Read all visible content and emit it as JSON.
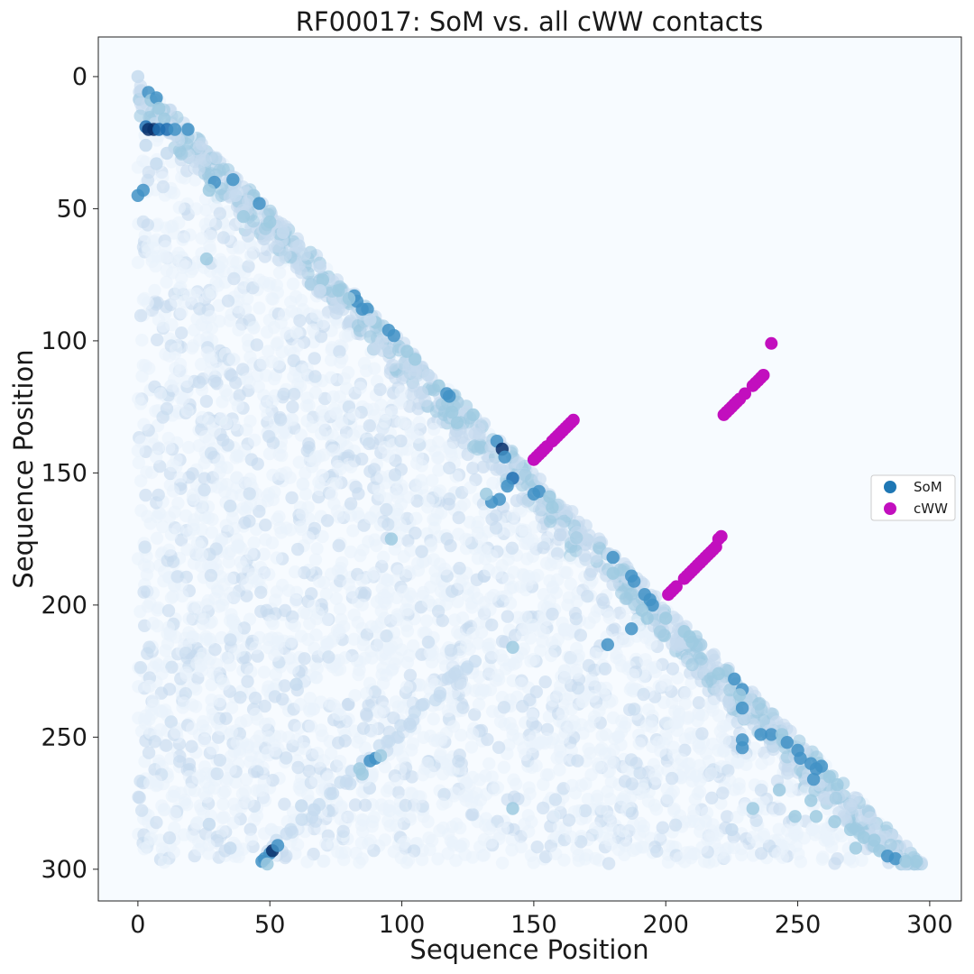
{
  "chart_data": {
    "type": "scatter",
    "title": "RF00017: SoM vs. all cWW contacts",
    "xlabel": "Sequence Position",
    "ylabel": "Sequence Position",
    "xlim": [
      -15,
      312
    ],
    "ylim": [
      312,
      -15
    ],
    "y_inverted": true,
    "x_ticks": [
      0,
      50,
      100,
      150,
      200,
      250,
      300
    ],
    "y_ticks": [
      0,
      50,
      100,
      150,
      200,
      250,
      300
    ],
    "background_color": "#f7fbff",
    "grid": false,
    "legend_position": "center-right",
    "som_colormap": [
      "#eaf2fb",
      "#c6dbef",
      "#9ecae1",
      "#4292c6",
      "#1f6eb1",
      "#08306b"
    ],
    "series": [
      {
        "name": "SoM",
        "color": "#1f77b4",
        "description_region": "lower triangle, x <= y, 0..297",
        "points": [
          [
            0,
            0,
            0.2
          ],
          [
            4,
            6,
            0.5
          ],
          [
            5,
            9,
            0.45
          ],
          [
            7,
            8,
            0.55
          ],
          [
            8,
            12,
            0.45
          ],
          [
            10,
            16,
            0.4
          ],
          [
            3,
            19,
            0.8
          ],
          [
            4,
            20,
            0.85
          ],
          [
            6,
            20,
            0.9
          ],
          [
            8,
            20,
            0.75
          ],
          [
            11,
            20,
            0.7
          ],
          [
            14,
            20,
            0.6
          ],
          [
            19,
            20,
            0.55
          ],
          [
            3,
            26,
            0.35
          ],
          [
            7,
            33,
            0.35
          ],
          [
            11,
            29,
            0.35
          ],
          [
            2,
            43,
            0.6
          ],
          [
            0,
            45,
            0.5
          ],
          [
            29,
            40,
            0.55
          ],
          [
            36,
            39,
            0.55
          ],
          [
            27,
            43,
            0.4
          ],
          [
            46,
            48,
            0.55
          ],
          [
            37,
            45,
            0.35
          ],
          [
            40,
            53,
            0.4
          ],
          [
            50,
            55,
            0.4
          ],
          [
            26,
            69,
            0.4
          ],
          [
            55,
            59,
            0.35
          ],
          [
            61,
            64,
            0.35
          ],
          [
            69,
            72,
            0.3
          ],
          [
            70,
            77,
            0.45
          ],
          [
            76,
            81,
            0.45
          ],
          [
            69,
            81,
            0.35
          ],
          [
            82,
            83,
            0.55
          ],
          [
            83,
            85,
            0.6
          ],
          [
            80,
            84,
            0.45
          ],
          [
            85,
            88,
            0.55
          ],
          [
            87,
            88,
            0.55
          ],
          [
            90,
            93,
            0.4
          ],
          [
            95,
            96,
            0.55
          ],
          [
            97,
            98,
            0.5
          ],
          [
            102,
            104,
            0.4
          ],
          [
            88,
            92,
            0.35
          ],
          [
            105,
            107,
            0.4
          ],
          [
            114,
            117,
            0.45
          ],
          [
            117,
            120,
            0.55
          ],
          [
            118,
            121,
            0.65
          ],
          [
            110,
            113,
            0.35
          ],
          [
            119,
            127,
            0.45
          ],
          [
            121,
            131,
            0.4
          ],
          [
            127,
            128,
            0.45
          ],
          [
            136,
            138,
            0.55
          ],
          [
            138,
            141,
            0.9
          ],
          [
            139,
            144,
            0.5
          ],
          [
            142,
            152,
            0.75
          ],
          [
            140,
            155,
            0.5
          ],
          [
            134,
            161,
            0.55
          ],
          [
            137,
            160,
            0.5
          ],
          [
            132,
            158,
            0.4
          ],
          [
            152,
            157,
            0.65
          ],
          [
            150,
            158,
            0.55
          ],
          [
            156,
            159,
            0.45
          ],
          [
            157,
            163,
            0.4
          ],
          [
            180,
            182,
            0.5
          ],
          [
            180,
            188,
            0.45
          ],
          [
            187,
            189,
            0.55
          ],
          [
            188,
            191,
            0.5
          ],
          [
            192,
            196,
            0.5
          ],
          [
            194,
            198,
            0.65
          ],
          [
            195,
            200,
            0.5
          ],
          [
            191,
            202,
            0.45
          ],
          [
            187,
            209,
            0.5
          ],
          [
            193,
            205,
            0.4
          ],
          [
            200,
            205,
            0.45
          ],
          [
            207,
            210,
            0.4
          ],
          [
            209,
            212,
            0.45
          ],
          [
            210,
            214,
            0.4
          ],
          [
            178,
            215,
            0.55
          ],
          [
            96,
            175,
            0.4
          ],
          [
            142,
            216,
            0.4
          ],
          [
            220,
            226,
            0.4
          ],
          [
            226,
            228,
            0.55
          ],
          [
            229,
            232,
            0.5
          ],
          [
            228,
            234,
            0.45
          ],
          [
            229,
            239,
            0.6
          ],
          [
            236,
            249,
            0.5
          ],
          [
            240,
            249,
            0.6
          ],
          [
            244,
            249,
            0.45
          ],
          [
            229,
            251,
            0.6
          ],
          [
            229,
            254,
            0.5
          ],
          [
            246,
            252,
            0.5
          ],
          [
            250,
            255,
            0.55
          ],
          [
            251,
            258,
            0.5
          ],
          [
            255,
            260,
            0.55
          ],
          [
            257,
            262,
            0.6
          ],
          [
            259,
            261,
            0.5
          ],
          [
            256,
            266,
            0.55
          ],
          [
            262,
            265,
            0.45
          ],
          [
            265,
            268,
            0.45
          ],
          [
            243,
            270,
            0.4
          ],
          [
            255,
            274,
            0.45
          ],
          [
            257,
            280,
            0.4
          ],
          [
            249,
            280,
            0.4
          ],
          [
            264,
            282,
            0.45
          ],
          [
            270,
            285,
            0.4
          ],
          [
            275,
            288,
            0.45
          ],
          [
            279,
            289,
            0.45
          ],
          [
            281,
            293,
            0.45
          ],
          [
            284,
            295,
            0.55
          ],
          [
            287,
            296,
            0.5
          ],
          [
            291,
            297,
            0.45
          ],
          [
            295,
            297,
            0.4
          ],
          [
            272,
            292,
            0.4
          ],
          [
            233,
            277,
            0.4
          ],
          [
            225,
            285,
            0.35
          ],
          [
            85,
            264,
            0.45
          ],
          [
            88,
            259,
            0.5
          ],
          [
            90,
            258,
            0.5
          ],
          [
            92,
            257,
            0.45
          ],
          [
            84,
            262,
            0.4
          ],
          [
            47,
            297,
            0.55
          ],
          [
            48,
            296,
            0.6
          ],
          [
            50,
            294,
            0.6
          ],
          [
            51,
            293,
            0.85
          ],
          [
            53,
            291,
            0.55
          ],
          [
            49,
            298,
            0.45
          ],
          [
            142,
            277,
            0.45
          ],
          [
            62,
            276,
            0.35
          ],
          [
            27,
            283,
            0.35
          ],
          [
            35,
            292,
            0.35
          ],
          [
            120,
            226,
            0.35
          ],
          [
            103,
            245,
            0.3
          ],
          [
            60,
            230,
            0.3
          ]
        ]
      },
      {
        "name": "cWW",
        "color": "#c20fbe",
        "points": [
          [
            150,
            145
          ],
          [
            151,
            144
          ],
          [
            152,
            143
          ],
          [
            153,
            142
          ],
          [
            154,
            141
          ],
          [
            155,
            140
          ],
          [
            157,
            138
          ],
          [
            158,
            137
          ],
          [
            159,
            136
          ],
          [
            160,
            135
          ],
          [
            161,
            134
          ],
          [
            162,
            133
          ],
          [
            163,
            132
          ],
          [
            164,
            131
          ],
          [
            165,
            130
          ],
          [
            201,
            196
          ],
          [
            202,
            195
          ],
          [
            203,
            194
          ],
          [
            204,
            193
          ],
          [
            207,
            190
          ],
          [
            208,
            189
          ],
          [
            209,
            188
          ],
          [
            210,
            187
          ],
          [
            211,
            186
          ],
          [
            212,
            185
          ],
          [
            213,
            184
          ],
          [
            214,
            183
          ],
          [
            215,
            182
          ],
          [
            216,
            181
          ],
          [
            217,
            180
          ],
          [
            218,
            179
          ],
          [
            219,
            178
          ],
          [
            220,
            175
          ],
          [
            221,
            174
          ],
          [
            222,
            128
          ],
          [
            223,
            127
          ],
          [
            224,
            126
          ],
          [
            225,
            125
          ],
          [
            226,
            124
          ],
          [
            227,
            123
          ],
          [
            228,
            122
          ],
          [
            230,
            120
          ],
          [
            233,
            117
          ],
          [
            234,
            116
          ],
          [
            235,
            115
          ],
          [
            236,
            114
          ],
          [
            237,
            113
          ],
          [
            240,
            101
          ]
        ]
      }
    ]
  }
}
